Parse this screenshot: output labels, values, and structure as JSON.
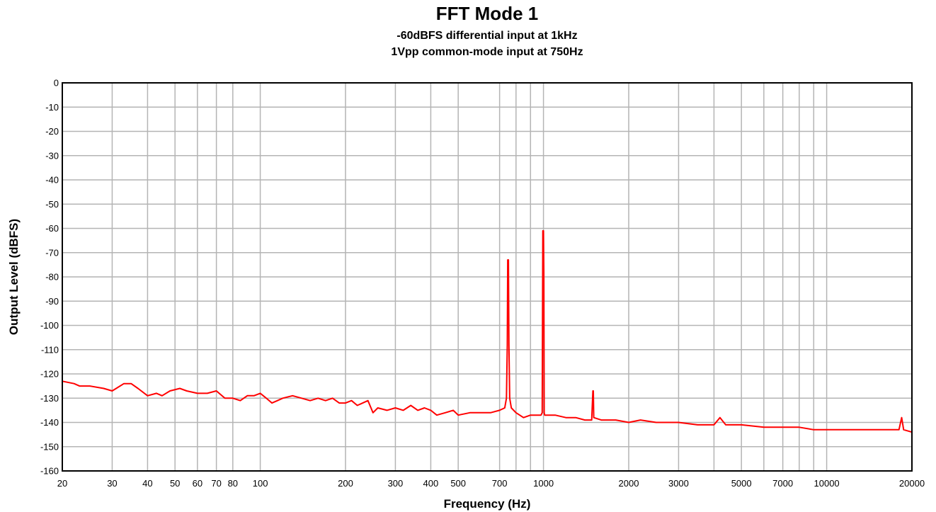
{
  "chart_data": {
    "type": "line",
    "title": "FFT Mode 1",
    "subtitle_lines": [
      "-60dBFS differential input at 1kHz",
      "1Vpp common-mode input at 750Hz"
    ],
    "xlabel": "Frequency (Hz)",
    "ylabel": "Output Level (dBFS)",
    "x_scale": "log",
    "xlim": [
      20,
      20000
    ],
    "ylim": [
      -160,
      0
    ],
    "x_tick_labels": [
      "20",
      "30",
      "40",
      "50",
      "60",
      "70",
      "80",
      "100",
      "200",
      "300",
      "400",
      "500",
      "700",
      "1000",
      "2000",
      "3000",
      "5000",
      "7000",
      "10000",
      "20000"
    ],
    "y_tick_labels": [
      "0",
      "-10",
      "-20",
      "-30",
      "-40",
      "-50",
      "-60",
      "-70",
      "-80",
      "-90",
      "-100",
      "-110",
      "-120",
      "-130",
      "-140",
      "-150",
      "-160"
    ],
    "grid": true,
    "line_color": "#ff0000",
    "series": [
      {
        "points": [
          [
            20,
            -123
          ],
          [
            22,
            -124
          ],
          [
            23,
            -125
          ],
          [
            25,
            -125
          ],
          [
            28,
            -126
          ],
          [
            30,
            -127
          ],
          [
            31,
            -126
          ],
          [
            33,
            -124
          ],
          [
            35,
            -124
          ],
          [
            37,
            -126
          ],
          [
            40,
            -129
          ],
          [
            43,
            -128
          ],
          [
            45,
            -129
          ],
          [
            48,
            -127
          ],
          [
            52,
            -126
          ],
          [
            55,
            -127
          ],
          [
            60,
            -128
          ],
          [
            65,
            -128
          ],
          [
            70,
            -127
          ],
          [
            75,
            -130
          ],
          [
            80,
            -130
          ],
          [
            85,
            -131
          ],
          [
            90,
            -129
          ],
          [
            95,
            -129
          ],
          [
            100,
            -128
          ],
          [
            105,
            -130
          ],
          [
            110,
            -132
          ],
          [
            115,
            -131
          ],
          [
            120,
            -130
          ],
          [
            130,
            -129
          ],
          [
            140,
            -130
          ],
          [
            150,
            -131
          ],
          [
            160,
            -130
          ],
          [
            170,
            -131
          ],
          [
            180,
            -130
          ],
          [
            190,
            -132
          ],
          [
            200,
            -132
          ],
          [
            210,
            -131
          ],
          [
            220,
            -133
          ],
          [
            230,
            -132
          ],
          [
            240,
            -131
          ],
          [
            250,
            -136
          ],
          [
            260,
            -134
          ],
          [
            280,
            -135
          ],
          [
            300,
            -134
          ],
          [
            320,
            -135
          ],
          [
            340,
            -133
          ],
          [
            360,
            -135
          ],
          [
            380,
            -134
          ],
          [
            400,
            -135
          ],
          [
            420,
            -137
          ],
          [
            450,
            -136
          ],
          [
            480,
            -135
          ],
          [
            500,
            -137
          ],
          [
            550,
            -136
          ],
          [
            600,
            -136
          ],
          [
            650,
            -136
          ],
          [
            700,
            -135
          ],
          [
            730,
            -134
          ],
          [
            740,
            -130
          ],
          [
            745,
            -108
          ],
          [
            748,
            -73
          ],
          [
            750,
            -73
          ],
          [
            752,
            -73
          ],
          [
            755,
            -108
          ],
          [
            760,
            -130
          ],
          [
            770,
            -134
          ],
          [
            800,
            -136
          ],
          [
            850,
            -138
          ],
          [
            900,
            -137
          ],
          [
            950,
            -137
          ],
          [
            980,
            -137
          ],
          [
            990,
            -136
          ],
          [
            995,
            -61
          ],
          [
            1000,
            -61
          ],
          [
            1003,
            -78
          ],
          [
            1006,
            -136
          ],
          [
            1010,
            -137
          ],
          [
            1100,
            -137
          ],
          [
            1200,
            -138
          ],
          [
            1300,
            -138
          ],
          [
            1400,
            -139
          ],
          [
            1480,
            -139
          ],
          [
            1495,
            -127
          ],
          [
            1500,
            -127
          ],
          [
            1505,
            -138
          ],
          [
            1600,
            -139
          ],
          [
            1800,
            -139
          ],
          [
            2000,
            -140
          ],
          [
            2200,
            -139
          ],
          [
            2500,
            -140
          ],
          [
            2800,
            -140
          ],
          [
            3000,
            -140
          ],
          [
            3500,
            -141
          ],
          [
            4000,
            -141
          ],
          [
            4200,
            -138
          ],
          [
            4400,
            -141
          ],
          [
            5000,
            -141
          ],
          [
            6000,
            -142
          ],
          [
            7000,
            -142
          ],
          [
            8000,
            -142
          ],
          [
            9000,
            -143
          ],
          [
            10000,
            -143
          ],
          [
            12000,
            -143
          ],
          [
            15000,
            -143
          ],
          [
            17000,
            -143
          ],
          [
            18000,
            -143
          ],
          [
            18400,
            -138
          ],
          [
            18700,
            -143
          ],
          [
            20000,
            -144
          ]
        ]
      }
    ]
  }
}
